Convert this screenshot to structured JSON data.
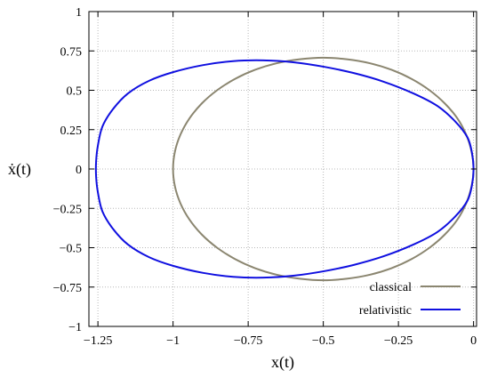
{
  "chart_data": {
    "type": "line",
    "title": "",
    "xlabel": "x(t)",
    "ylabel": "ẋ(t)",
    "xlim": [
      -1.28,
      0.01
    ],
    "ylim": [
      -1,
      1
    ],
    "xticks": [
      {
        "value": -1.25,
        "label": "−1.25"
      },
      {
        "value": -1,
        "label": "−1"
      },
      {
        "value": -0.75,
        "label": "−0.75"
      },
      {
        "value": -0.5,
        "label": "−0.5"
      },
      {
        "value": -0.25,
        "label": "−0.25"
      },
      {
        "value": 0,
        "label": "0"
      }
    ],
    "yticks": [
      {
        "value": -1,
        "label": "−1"
      },
      {
        "value": -0.75,
        "label": "−0.75"
      },
      {
        "value": -0.5,
        "label": "−0.5"
      },
      {
        "value": -0.25,
        "label": "−0.25"
      },
      {
        "value": 0,
        "label": "0"
      },
      {
        "value": 0.25,
        "label": "0.25"
      },
      {
        "value": 0.5,
        "label": "0.5"
      },
      {
        "value": 0.75,
        "label": "0.75"
      },
      {
        "value": 1,
        "label": "1"
      }
    ],
    "grid": true,
    "legend_position": "bottom-right",
    "series": [
      {
        "name": "classical",
        "color": "#8b8670",
        "x": [
          0,
          -0.0067,
          -0.0245,
          -0.0536,
          -0.0955,
          -0.1464,
          -0.2061,
          -0.273,
          -0.3455,
          -0.4218,
          -0.5,
          -0.5782,
          -0.6545,
          -0.727,
          -0.7939,
          -0.8536,
          -0.9045,
          -0.9455,
          -0.9755,
          -0.9938,
          -1,
          -0.9938,
          -0.9755,
          -0.9455,
          -0.9045,
          -0.8536,
          -0.7939,
          -0.727,
          -0.6545,
          -0.5782,
          -0.5,
          -0.4218,
          -0.3455,
          -0.273,
          -0.2061,
          -0.1464,
          -0.0955,
          -0.0536,
          -0.0245,
          -0.0067,
          0
        ],
        "y": [
          0,
          0.11,
          0.218,
          0.321,
          0.416,
          0.5,
          0.572,
          0.63,
          0.672,
          0.697,
          0.707,
          0.697,
          0.672,
          0.63,
          0.572,
          0.5,
          0.416,
          0.321,
          0.218,
          0.11,
          0,
          -0.11,
          -0.218,
          -0.321,
          -0.416,
          -0.5,
          -0.572,
          -0.63,
          -0.672,
          -0.697,
          -0.707,
          -0.697,
          -0.672,
          -0.63,
          -0.572,
          -0.5,
          -0.416,
          -0.321,
          -0.218,
          -0.11,
          0
        ]
      },
      {
        "name": "relativistic",
        "color": "#1010e0",
        "x": [
          0,
          -0.005,
          -0.02,
          -0.06,
          -0.12,
          -0.2,
          -0.3,
          -0.4,
          -0.5,
          -0.6,
          -0.7,
          -0.8,
          -0.9,
          -1.0,
          -1.08,
          -1.15,
          -1.2,
          -1.235,
          -1.25,
          -1.256,
          -1.256,
          -1.25,
          -1.235,
          -1.2,
          -1.15,
          -1.08,
          -1.0,
          -0.9,
          -0.8,
          -0.7,
          -0.6,
          -0.5,
          -0.4,
          -0.3,
          -0.2,
          -0.12,
          -0.06,
          -0.02,
          -0.005,
          0
        ],
        "y": [
          0,
          0.1,
          0.2,
          0.3,
          0.4,
          0.48,
          0.555,
          0.61,
          0.65,
          0.678,
          0.69,
          0.685,
          0.66,
          0.615,
          0.56,
          0.48,
          0.38,
          0.27,
          0.15,
          0.05,
          -0.05,
          -0.15,
          -0.27,
          -0.38,
          -0.48,
          -0.56,
          -0.615,
          -0.66,
          -0.685,
          -0.69,
          -0.678,
          -0.65,
          -0.61,
          -0.555,
          -0.48,
          -0.4,
          -0.3,
          -0.2,
          -0.1,
          0
        ]
      }
    ]
  },
  "colors": {
    "grid": "#b8b8b8",
    "axis": "#000000"
  }
}
